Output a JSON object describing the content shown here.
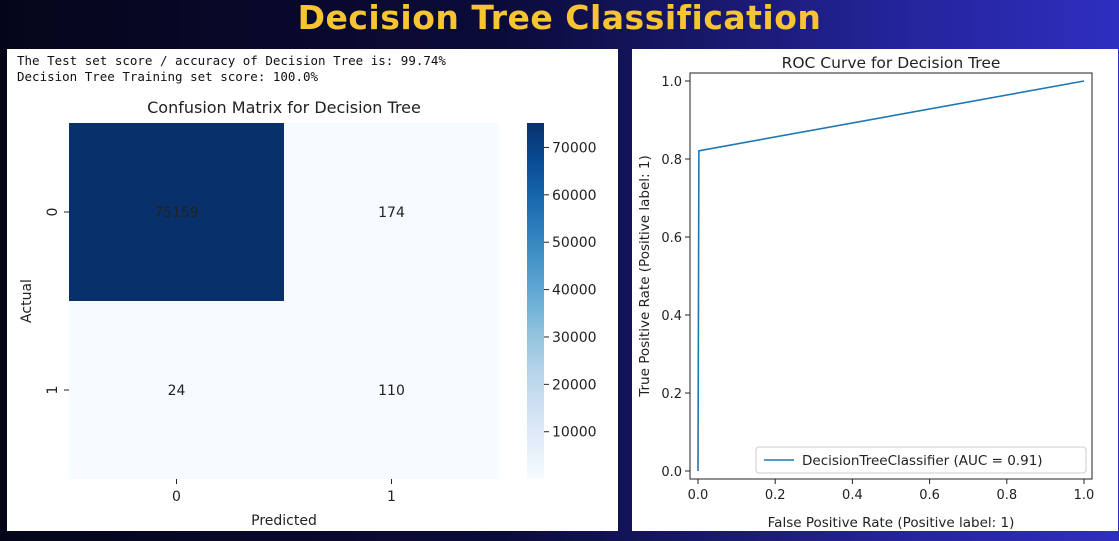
{
  "page": {
    "title": "Decision Tree Classification"
  },
  "scores": {
    "test": "The Test set score / accuracy of Decision Tree is: 99.74%",
    "train": "Decision Tree Training set score: 100.0%"
  },
  "colors": {
    "title": "#f7c531",
    "heatmap_dark": "#08306b",
    "heatmap_light": "#f7fbff",
    "roc_line": "#1f77b4"
  },
  "chart_data": [
    {
      "type": "heatmap",
      "title": "Confusion Matrix for Decision Tree",
      "xlabel": "Predicted",
      "ylabel": "Actual",
      "x_categories": [
        "0",
        "1"
      ],
      "y_categories": [
        "0",
        "1"
      ],
      "values": [
        [
          75159,
          174
        ],
        [
          24,
          110
        ]
      ],
      "colormap": "Blues",
      "colorbar": {
        "min": 24,
        "max": 75159,
        "ticks": [
          10000,
          20000,
          30000,
          40000,
          50000,
          60000,
          70000
        ]
      }
    },
    {
      "type": "line",
      "title": "ROC Curve for Decision Tree",
      "xlabel": "False Positive Rate (Positive label: 1)",
      "ylabel": "True Positive Rate (Positive label: 1)",
      "xlim": [
        0.0,
        1.0
      ],
      "ylim": [
        0.0,
        1.0
      ],
      "xticks": [
        0.0,
        0.2,
        0.4,
        0.6,
        0.8,
        1.0
      ],
      "yticks": [
        0.0,
        0.2,
        0.4,
        0.6,
        0.8,
        1.0
      ],
      "tick_labels": [
        "0.0",
        "0.2",
        "0.4",
        "0.6",
        "0.8",
        "1.0"
      ],
      "grid": false,
      "legend_position": "lower-right",
      "series": [
        {
          "name": "DecisionTreeClassifier (AUC = 0.91)",
          "x": [
            0.0,
            0.0023,
            1.0
          ],
          "y": [
            0.0,
            0.8209,
            1.0
          ]
        }
      ]
    }
  ]
}
